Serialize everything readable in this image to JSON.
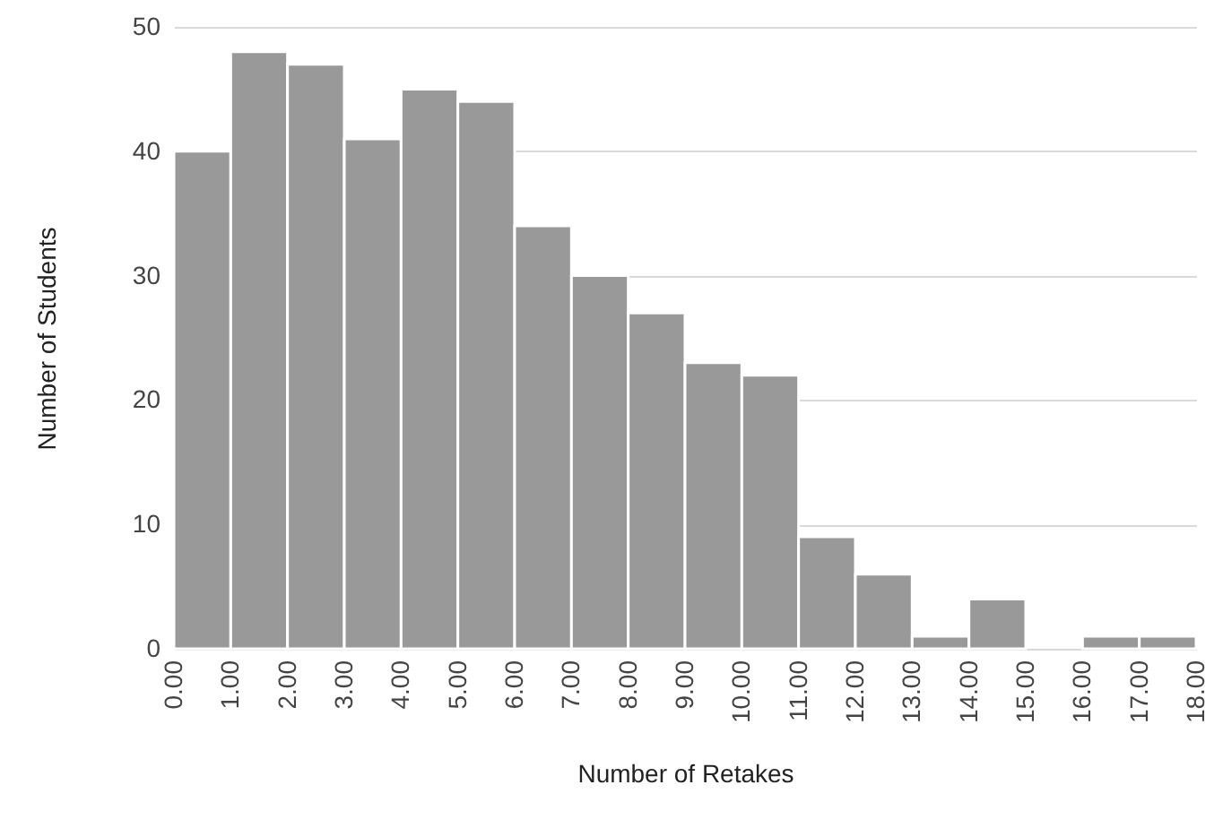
{
  "chart_data": {
    "type": "histogram",
    "xlabel": "Number of Retakes",
    "ylabel": "Number of Students",
    "bins": [
      0,
      1,
      2,
      3,
      4,
      5,
      6,
      7,
      8,
      9,
      10,
      11,
      12,
      13,
      14,
      15,
      16,
      17,
      18
    ],
    "values": [
      40,
      48,
      47,
      41,
      45,
      44,
      34,
      30,
      27,
      23,
      22,
      9,
      6,
      1,
      4,
      0,
      1,
      1
    ],
    "color": "#999999",
    "xlim": [
      0,
      18
    ],
    "xticks": [
      {
        "value": 0,
        "label": "0.00"
      },
      {
        "value": 1,
        "label": "1.00"
      },
      {
        "value": 2,
        "label": "2.00"
      },
      {
        "value": 3,
        "label": "3.00"
      },
      {
        "value": 4,
        "label": "4.00"
      },
      {
        "value": 5,
        "label": "5.00"
      },
      {
        "value": 6,
        "label": "6.00"
      },
      {
        "value": 7,
        "label": "7.00"
      },
      {
        "value": 8,
        "label": "8.00"
      },
      {
        "value": 9,
        "label": "9.00"
      },
      {
        "value": 10,
        "label": "10.00"
      },
      {
        "value": 11,
        "label": "11.00"
      },
      {
        "value": 12,
        "label": "12.00"
      },
      {
        "value": 13,
        "label": "13.00"
      },
      {
        "value": 14,
        "label": "14.00"
      },
      {
        "value": 15,
        "label": "15.00"
      },
      {
        "value": 16,
        "label": "16.00"
      },
      {
        "value": 17,
        "label": "17.00"
      },
      {
        "value": 18,
        "label": "18.00"
      }
    ],
    "ylim": [
      0,
      50
    ],
    "yticks": [
      0,
      10,
      20,
      30,
      40,
      50
    ],
    "grid": "y"
  }
}
